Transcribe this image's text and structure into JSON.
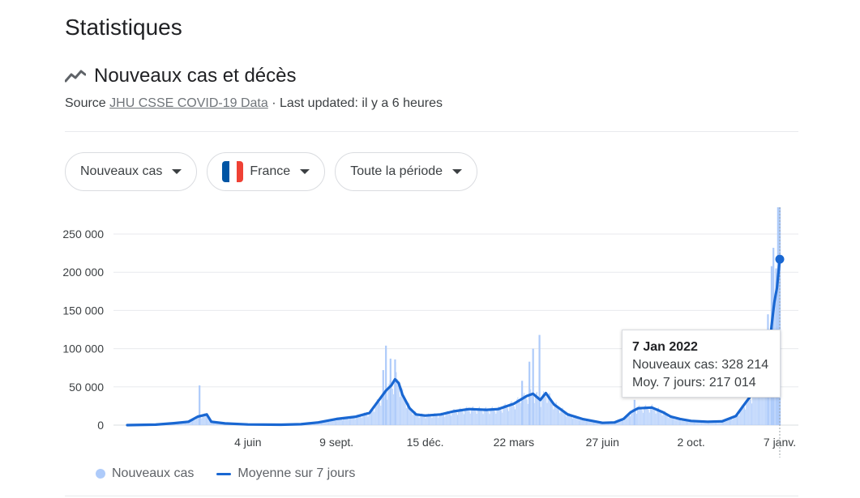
{
  "page": {
    "title": "Statistiques"
  },
  "section": {
    "title": "Nouveaux cas et décès",
    "icon": "trending-line-icon",
    "source_label": "Source",
    "source_link": "JHU CSSE COVID-19 Data",
    "updated": "· Last updated: il y a 6 heures"
  },
  "filters": {
    "metric": "Nouveaux cas",
    "country": "France",
    "country_flag_colors": [
      "#0055a4",
      "#ffffff",
      "#ef4135"
    ],
    "period": "Toute la période"
  },
  "tooltip": {
    "date": "7 Jan 2022",
    "cases_line": "Nouveaux cas: 328 214",
    "avg_line": "Moy. 7 jours: 217 014"
  },
  "legend": {
    "bars": "Nouveaux cas",
    "line": "Moyenne sur 7 jours"
  },
  "colors": {
    "bars": "#aecbfa",
    "line": "#1967d2",
    "grid": "#e8eaed"
  },
  "chart_data": {
    "type": "bar",
    "y_ticks": [
      "0",
      "50 000",
      "100 000",
      "150 000",
      "200 000",
      "250 000"
    ],
    "x_ticks": [
      "4 juin",
      "9 sept.",
      "15 déc.",
      "22 mars",
      "27 juin",
      "2 oct.",
      "7 janv."
    ],
    "ylim": [
      0,
      285000
    ],
    "xlim": [
      "2020-01-24",
      "2022-01-07"
    ],
    "x_tick_dates": [
      "2020-06-04",
      "2020-09-09",
      "2020-12-15",
      "2021-03-22",
      "2021-06-27",
      "2021-10-02",
      "2022-01-07"
    ],
    "series": [
      {
        "name": "Moyenne sur 7 jours",
        "type": "line",
        "points": [
          [
            "2020-01-24",
            0
          ],
          [
            "2020-02-24",
            600
          ],
          [
            "2020-03-15",
            2500
          ],
          [
            "2020-03-31",
            4500
          ],
          [
            "2020-04-10",
            11000
          ],
          [
            "2020-04-20",
            14000
          ],
          [
            "2020-04-25",
            4500
          ],
          [
            "2020-05-10",
            2200
          ],
          [
            "2020-06-04",
            800
          ],
          [
            "2020-07-10",
            500
          ],
          [
            "2020-08-01",
            1200
          ],
          [
            "2020-08-20",
            3500
          ],
          [
            "2020-09-09",
            8000
          ],
          [
            "2020-09-30",
            11000
          ],
          [
            "2020-10-15",
            16000
          ],
          [
            "2020-10-25",
            32000
          ],
          [
            "2020-11-02",
            45000
          ],
          [
            "2020-11-08",
            52000
          ],
          [
            "2020-11-12",
            60000
          ],
          [
            "2020-11-16",
            55000
          ],
          [
            "2020-11-20",
            40000
          ],
          [
            "2020-11-28",
            22000
          ],
          [
            "2020-12-05",
            14000
          ],
          [
            "2020-12-15",
            12500
          ],
          [
            "2021-01-01",
            14000
          ],
          [
            "2021-01-15",
            18000
          ],
          [
            "2021-02-01",
            21000
          ],
          [
            "2021-02-20",
            20000
          ],
          [
            "2021-03-05",
            21000
          ],
          [
            "2021-03-22",
            28000
          ],
          [
            "2021-04-05",
            38000
          ],
          [
            "2021-04-12",
            41000
          ],
          [
            "2021-04-20",
            33000
          ],
          [
            "2021-04-26",
            42000
          ],
          [
            "2021-05-05",
            27000
          ],
          [
            "2021-05-20",
            14000
          ],
          [
            "2021-06-05",
            8000
          ],
          [
            "2021-06-27",
            3000
          ],
          [
            "2021-07-10",
            3500
          ],
          [
            "2021-07-20",
            8000
          ],
          [
            "2021-07-28",
            17000
          ],
          [
            "2021-08-05",
            22000
          ],
          [
            "2021-08-20",
            23000
          ],
          [
            "2021-09-01",
            17000
          ],
          [
            "2021-09-10",
            11000
          ],
          [
            "2021-09-20",
            8000
          ],
          [
            "2021-10-02",
            5500
          ],
          [
            "2021-10-20",
            4500
          ],
          [
            "2021-11-05",
            5000
          ],
          [
            "2021-11-20",
            12000
          ],
          [
            "2021-12-01",
            30000
          ],
          [
            "2021-12-10",
            44000
          ],
          [
            "2021-12-20",
            60000
          ],
          [
            "2021-12-26",
            90000
          ],
          [
            "2021-12-29",
            130000
          ],
          [
            "2022-01-01",
            160000
          ],
          [
            "2022-01-04",
            180000
          ],
          [
            "2022-01-07",
            217014
          ]
        ]
      },
      {
        "name": "Nouveaux cas",
        "type": "bar",
        "spikes": [
          [
            "2020-04-12",
            52000
          ],
          [
            "2020-11-02",
            104000
          ],
          [
            "2020-11-07",
            87000
          ],
          [
            "2020-11-12",
            86000
          ],
          [
            "2020-10-30",
            72000
          ],
          [
            "2021-03-31",
            58000
          ],
          [
            "2021-04-08",
            83000
          ],
          [
            "2021-04-12",
            100000
          ],
          [
            "2021-04-19",
            118000
          ],
          [
            "2021-08-01",
            33000
          ],
          [
            "2021-12-25",
            145000
          ],
          [
            "2021-12-29",
            208000
          ],
          [
            "2021-12-31",
            232000
          ],
          [
            "2022-01-03",
            205000
          ],
          [
            "2022-01-05",
            285000
          ],
          [
            "2022-01-07",
            328214
          ]
        ]
      }
    ]
  }
}
